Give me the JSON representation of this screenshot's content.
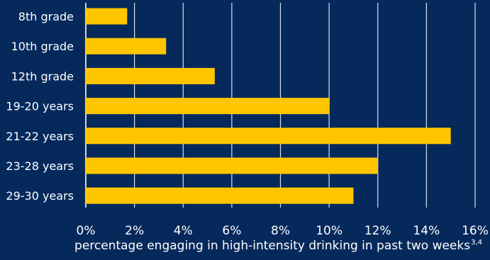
{
  "chart_data": {
    "type": "bar",
    "orientation": "horizontal",
    "categories": [
      "8th grade",
      "10th grade",
      "12th grade",
      "19-20 years",
      "21-22 years",
      "23-28 years",
      "29-30 years"
    ],
    "values": [
      1.7,
      3.3,
      5.3,
      10,
      15,
      12,
      11
    ],
    "xlabel": "percentage engaging in high-intensity drinking in past two weeks",
    "xlabel_superscript": "3,4",
    "xlim": [
      0,
      16
    ],
    "ticks": [
      "0%",
      "2%",
      "4%",
      "6%",
      "8%",
      "10%",
      "12%",
      "14%",
      "16%"
    ],
    "grid": true,
    "colors": {
      "background": "#06295c",
      "bar": "#ffc600",
      "text": "#ffffff",
      "grid": "#ffffff"
    }
  }
}
